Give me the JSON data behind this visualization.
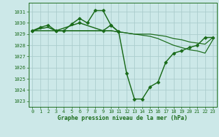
{
  "bg_color": "#cce8e8",
  "grid_color": "#aacccc",
  "line_color": "#1a6b1a",
  "marker_color": "#1a6b1a",
  "xlabel": "Graphe pression niveau de la mer (hPa)",
  "ylim": [
    1022.5,
    1031.8
  ],
  "xlim": [
    -0.5,
    23.5
  ],
  "yticks": [
    1023,
    1024,
    1025,
    1026,
    1027,
    1028,
    1029,
    1030,
    1031
  ],
  "xticks": [
    0,
    1,
    2,
    3,
    4,
    5,
    6,
    7,
    8,
    9,
    10,
    11,
    12,
    13,
    14,
    15,
    16,
    17,
    18,
    19,
    20,
    21,
    22,
    23
  ],
  "series": [
    {
      "x": [
        0,
        1,
        2,
        3,
        4,
        5,
        6,
        7,
        8,
        9,
        10,
        11
      ],
      "y": [
        1029.3,
        1029.6,
        1029.8,
        1029.3,
        1029.3,
        1029.9,
        1030.4,
        1030.0,
        1031.1,
        1031.1,
        1029.8,
        1029.2
      ],
      "marker": "D",
      "markersize": 2.5,
      "linewidth": 1.1
    },
    {
      "x": [
        0,
        1,
        2,
        3,
        4,
        5,
        6,
        7,
        8,
        9,
        10,
        11,
        12,
        13,
        14,
        15,
        16,
        17,
        18,
        19,
        20,
        21,
        22,
        23
      ],
      "y": [
        1029.3,
        1029.5,
        1029.6,
        1029.3,
        1029.3,
        1029.3,
        1029.3,
        1029.3,
        1029.3,
        1029.3,
        1029.3,
        1029.2,
        1029.1,
        1029.0,
        1029.0,
        1029.0,
        1028.9,
        1028.8,
        1028.6,
        1028.5,
        1028.3,
        1028.2,
        1028.1,
        1028.7
      ],
      "marker": null,
      "markersize": 0,
      "linewidth": 0.9
    },
    {
      "x": [
        0,
        1,
        2,
        3,
        4,
        5,
        6,
        7,
        8,
        9,
        10,
        11,
        12,
        13,
        14,
        15,
        16,
        17,
        18,
        19,
        20,
        21,
        22,
        23
      ],
      "y": [
        1029.3,
        1029.5,
        1029.6,
        1029.3,
        1029.3,
        1029.3,
        1029.3,
        1029.3,
        1029.3,
        1029.3,
        1029.3,
        1029.2,
        1029.1,
        1029.0,
        1028.9,
        1028.8,
        1028.6,
        1028.3,
        1028.0,
        1027.8,
        1027.6,
        1027.5,
        1027.3,
        1028.5
      ],
      "marker": null,
      "markersize": 0,
      "linewidth": 0.9
    },
    {
      "x": [
        0,
        3,
        6,
        9,
        10,
        11,
        12,
        13,
        14,
        15,
        16,
        17,
        18,
        19,
        20,
        21,
        22,
        23
      ],
      "y": [
        1029.3,
        1029.3,
        1030.0,
        1029.3,
        1029.8,
        1029.2,
        1025.5,
        1023.2,
        1023.2,
        1024.3,
        1024.7,
        1026.5,
        1027.3,
        1027.5,
        1027.8,
        1028.0,
        1028.7,
        1028.7
      ],
      "marker": "D",
      "markersize": 2.5,
      "linewidth": 1.1
    }
  ]
}
